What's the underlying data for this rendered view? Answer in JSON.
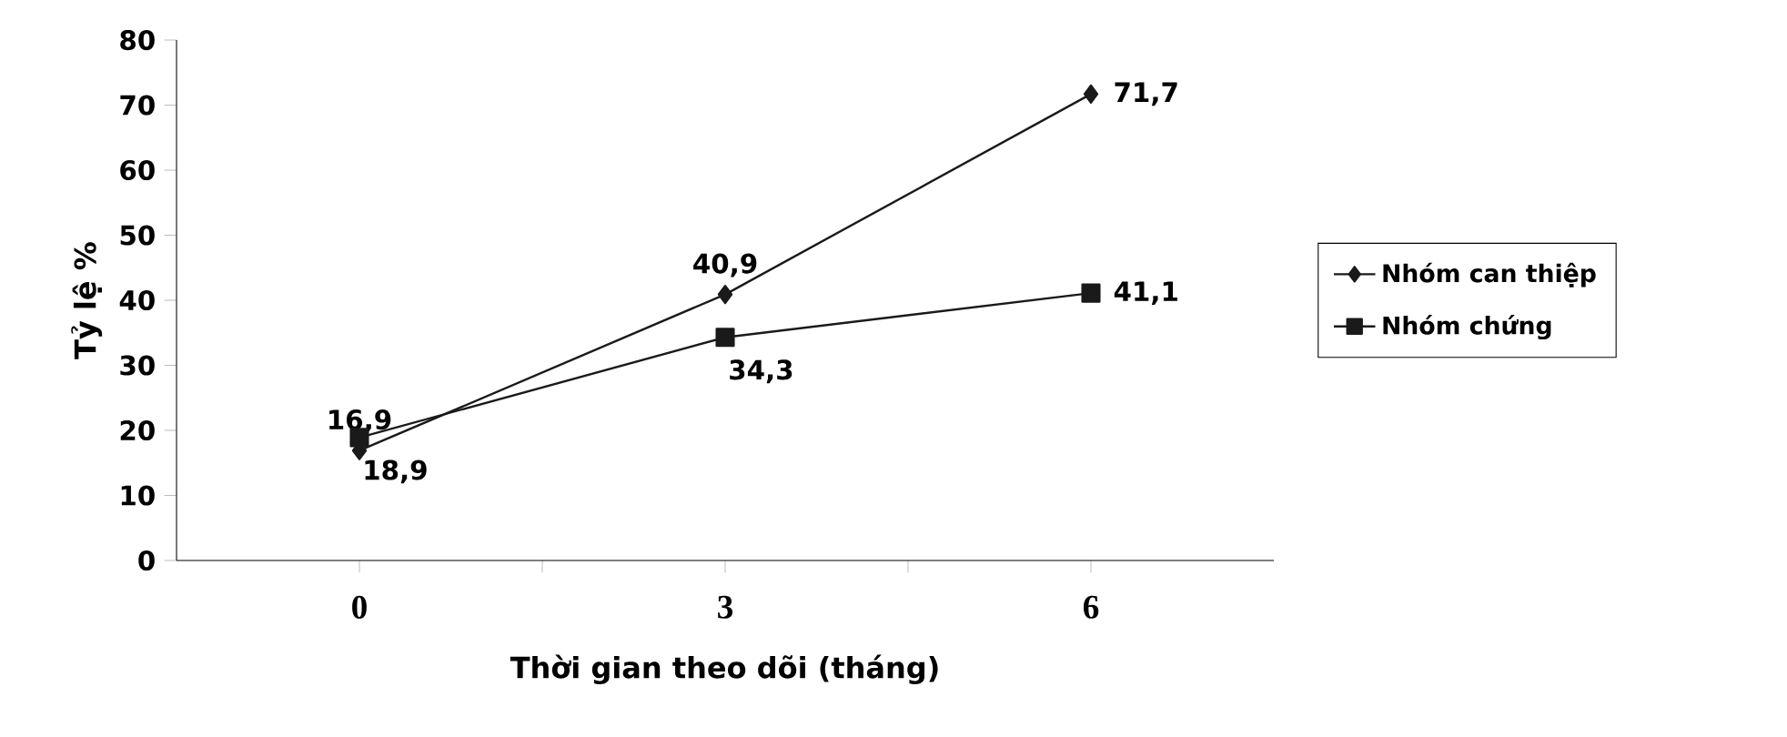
{
  "chart_data": {
    "type": "line",
    "xlabel": "Thời gian theo dõi (tháng)",
    "ylabel": "Tỷ lệ %",
    "categories": [
      "0",
      "3",
      "6"
    ],
    "series": [
      {
        "name": "Nhóm can thiệp",
        "color": "#1a1a1a",
        "marker": "diamond",
        "values": [
          16.9,
          40.9,
          71.7
        ],
        "value_labels": [
          "16,9",
          "40,9",
          "71,7"
        ]
      },
      {
        "name": "Nhóm chứng",
        "color": "#1a1a1a",
        "marker": "square",
        "values": [
          18.9,
          34.3,
          41.1
        ],
        "value_labels": [
          "18,9",
          "34,3",
          "41,1"
        ]
      }
    ],
    "ylim": [
      0,
      80
    ],
    "yticks": [
      0,
      10,
      20,
      30,
      40,
      50,
      60,
      70,
      80
    ],
    "grid": false,
    "legend": "right",
    "line_style": "solid"
  }
}
